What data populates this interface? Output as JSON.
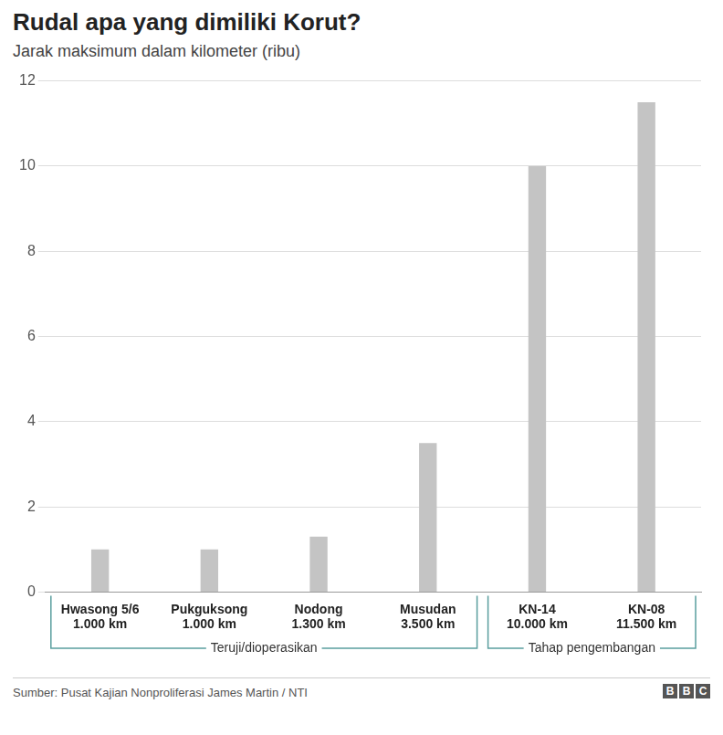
{
  "chart_data": {
    "type": "bar",
    "title": "Rudal apa yang dimiliki Korut?",
    "subtitle": "Jarak maksimum dalam kilometer (ribu)",
    "categories": [
      "Hwasong 5/6",
      "Pukguksong",
      "Nodong",
      "Musudan",
      "KN-14",
      "KN-08"
    ],
    "values": [
      1,
      1,
      1.3,
      3.5,
      10,
      11.5
    ],
    "value_labels": [
      "1.000 km",
      "1.000 km",
      "1.300 km",
      "3.500 km",
      "10.000 km",
      "11.500 km"
    ],
    "color": "#c4c4c4",
    "ylim": [
      0,
      12
    ],
    "yticks": [
      0,
      2,
      4,
      6,
      8,
      10,
      12
    ],
    "grid": true,
    "groups": [
      {
        "name": "Teruji/dioperasikan",
        "members": [
          "Hwasong 5/6",
          "Pukguksong",
          "Nodong",
          "Musudan"
        ]
      },
      {
        "name": "Tahap pengembangan",
        "members": [
          "KN-14",
          "KN-08"
        ]
      }
    ],
    "source": "Sumber: Pusat Kajian Nonproliferasi James Martin / NTI",
    "logo": "BBC"
  }
}
